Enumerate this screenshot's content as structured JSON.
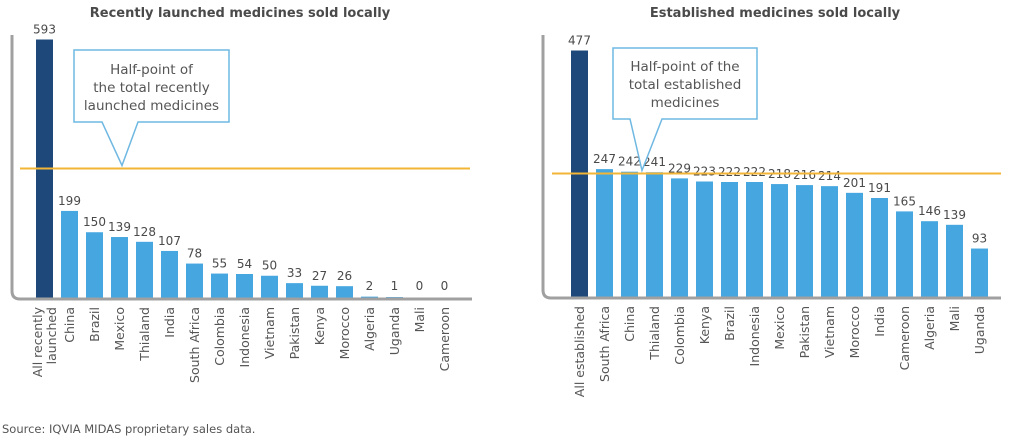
{
  "colors": {
    "total_bar": "#1e477a",
    "country_bar": "#45a6e0",
    "half_line": "#f2b535",
    "axis": "#a0a0a0",
    "callout_border": "#6fb8e2",
    "text": "#4a4a4a"
  },
  "source": "Source: IQVIA MIDAS proprietary sales data.",
  "chart_data": [
    {
      "type": "bar",
      "title": "Recently launched medicines sold locally",
      "xlabel": "",
      "ylabel": "",
      "categories": [
        "All recently launched",
        "China",
        "Brazil",
        "Mexico",
        "Thialand",
        "India",
        "South Africa",
        "Colombia",
        "Indonesia",
        "Vietnam",
        "Pakistan",
        "Kenya",
        "Morocco",
        "Algeria",
        "Uganda",
        "Mali",
        "Cameroon"
      ],
      "category_lines": [
        [
          "All recently",
          "launched"
        ],
        [
          "China"
        ],
        [
          "Brazil"
        ],
        [
          "Mexico"
        ],
        [
          "Thialand"
        ],
        [
          "India"
        ],
        [
          "South Africa"
        ],
        [
          "Colombia"
        ],
        [
          "Indonesia"
        ],
        [
          "Vietnam"
        ],
        [
          "Pakistan"
        ],
        [
          "Kenya"
        ],
        [
          "Morocco"
        ],
        [
          "Algeria"
        ],
        [
          "Uganda"
        ],
        [
          "Mali"
        ],
        [
          "Cameroon"
        ]
      ],
      "values": [
        593,
        199,
        150,
        139,
        128,
        107,
        78,
        55,
        54,
        50,
        33,
        27,
        26,
        2,
        1,
        0,
        0
      ],
      "highlight_index": 0,
      "reference_line": {
        "value": 296.5,
        "label_lines": [
          "Half-point of",
          "the total recently",
          "launched medicines"
        ]
      },
      "ylim": [
        0,
        593
      ],
      "grid": false,
      "legend": "none"
    },
    {
      "type": "bar",
      "title": "Established medicines sold locally",
      "xlabel": "",
      "ylabel": "",
      "categories": [
        "All established",
        "South Africa",
        "China",
        "Thialand",
        "Colombia",
        "Kenya",
        "Brazil",
        "Indonesia",
        "Mexico",
        "Pakistan",
        "Vietnam",
        "Morocco",
        "India",
        "Cameroon",
        "Algeria",
        "Mali",
        "Uganda"
      ],
      "category_lines": [
        [
          "All established"
        ],
        [
          "South Africa"
        ],
        [
          "China"
        ],
        [
          "Thialand"
        ],
        [
          "Colombia"
        ],
        [
          "Kenya"
        ],
        [
          "Brazil"
        ],
        [
          "Indonesia"
        ],
        [
          "Mexico"
        ],
        [
          "Pakistan"
        ],
        [
          "Vietnam"
        ],
        [
          "Morocco"
        ],
        [
          "India"
        ],
        [
          "Cameroon"
        ],
        [
          "Algeria"
        ],
        [
          "Mali"
        ],
        [
          "Uganda"
        ]
      ],
      "values": [
        477,
        247,
        242,
        241,
        229,
        223,
        222,
        222,
        218,
        216,
        214,
        201,
        191,
        165,
        146,
        139,
        93
      ],
      "highlight_index": 0,
      "reference_line": {
        "value": 238.5,
        "label_lines": [
          "Half-point of the",
          "total established",
          "medicines"
        ]
      },
      "ylim": [
        0,
        477
      ],
      "grid": false,
      "legend": "none"
    }
  ]
}
